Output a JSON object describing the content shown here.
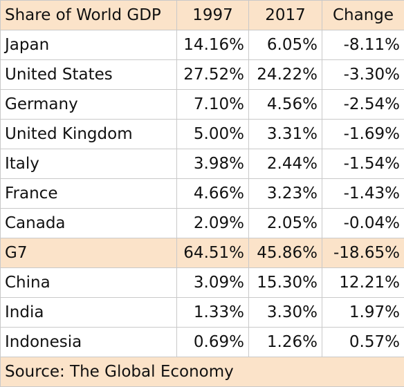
{
  "colors": {
    "header_background": "#fbe3c9",
    "grid": "#c9c9c9",
    "text": "#111111",
    "background": "#ffffff"
  },
  "chart_data": {
    "type": "table",
    "columns": [
      "Share of World GDP",
      "1997",
      "2017",
      "Change"
    ],
    "rows": [
      {
        "country": "Japan",
        "y1997": "14.16%",
        "y2017": "6.05%",
        "change": "-8.11%"
      },
      {
        "country": "United States",
        "y1997": "27.52%",
        "y2017": "24.22%",
        "change": "-3.30%"
      },
      {
        "country": "Germany",
        "y1997": "7.10%",
        "y2017": "4.56%",
        "change": "-2.54%"
      },
      {
        "country": "United Kingdom",
        "y1997": "5.00%",
        "y2017": "3.31%",
        "change": "-1.69%"
      },
      {
        "country": "Italy",
        "y1997": "3.98%",
        "y2017": "2.44%",
        "change": "-1.54%"
      },
      {
        "country": "France",
        "y1997": "4.66%",
        "y2017": "3.23%",
        "change": "-1.43%"
      },
      {
        "country": "Canada",
        "y1997": "2.09%",
        "y2017": "2.05%",
        "change": "-0.04%"
      },
      {
        "country": "G7",
        "y1997": "64.51%",
        "y2017": "45.86%",
        "change": "-18.65%",
        "highlight": true
      },
      {
        "country": "China",
        "y1997": "3.09%",
        "y2017": "15.30%",
        "change": "12.21%"
      },
      {
        "country": "India",
        "y1997": "1.33%",
        "y2017": "3.30%",
        "change": "1.97%"
      },
      {
        "country": "Indonesia",
        "y1997": "0.69%",
        "y2017": "1.26%",
        "change": "0.57%"
      }
    ],
    "source": "Source: The Global Economy"
  }
}
